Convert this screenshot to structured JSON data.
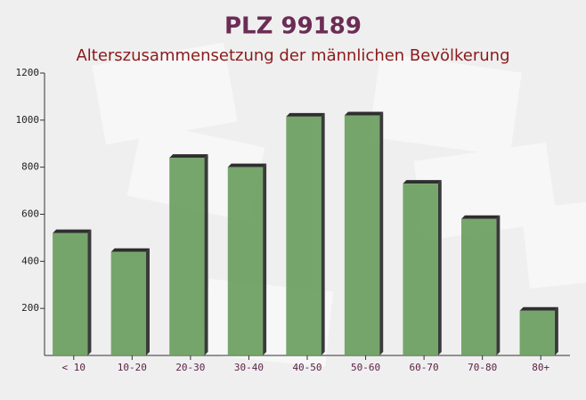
{
  "chart_data": {
    "type": "bar",
    "title": "PLZ 99189",
    "subtitle": "Alterszusammensetzung der männlichen Bevölkerung",
    "categories": [
      "< 10",
      "10-20",
      "20-30",
      "30-40",
      "40-50",
      "50-60",
      "60-70",
      "70-80",
      "80+"
    ],
    "values": [
      520,
      440,
      840,
      800,
      1015,
      1020,
      730,
      580,
      190
    ],
    "color": "#6a9e5e",
    "ylim": [
      0,
      1200
    ],
    "yticks": [
      200,
      400,
      600,
      800,
      1000,
      1200
    ]
  }
}
